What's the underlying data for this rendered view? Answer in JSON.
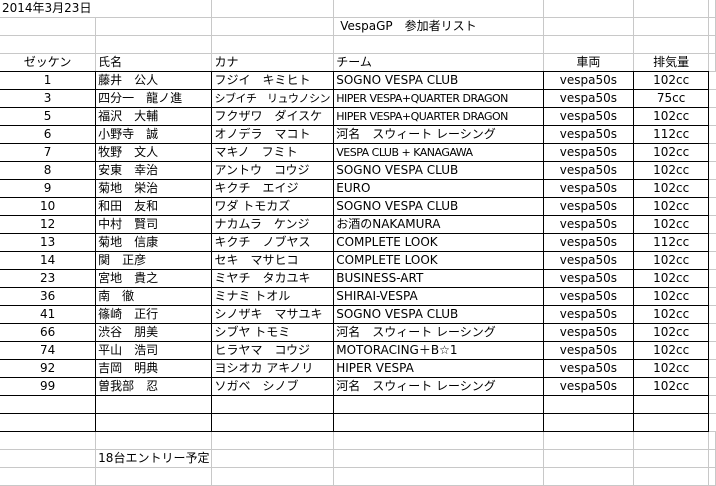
{
  "date": "2014年3月23日",
  "title": "VespaGP　参加者リスト",
  "headers": {
    "number": "ゼッケン",
    "name": "氏名",
    "kana": "カナ",
    "team": "チーム",
    "vehicle": "車両",
    "displacement": "排気量"
  },
  "entries": [
    {
      "number": "1",
      "name": "藤井　公人",
      "kana": "フジイ　キミヒト",
      "team": "SOGNO VESPA CLUB",
      "vehicle": "vespa50s",
      "displacement": "102cc"
    },
    {
      "number": "3",
      "name": "四分一　龍ノ進",
      "kana": "シブイチ　リュウノシン",
      "team": "HIPER VESPA+QUARTER DRAGON",
      "vehicle": "vespa50s",
      "displacement": "75cc"
    },
    {
      "number": "5",
      "name": "福沢　大輔",
      "kana": "フクザワ　ダイスケ",
      "team": "HIPER VESPA+QUARTER DRAGON",
      "vehicle": "vespa50s",
      "displacement": "102cc"
    },
    {
      "number": "6",
      "name": "小野寺　誠",
      "kana": "オノデラ　マコト",
      "team": "河名　スウィート レーシング",
      "vehicle": "vespa50s",
      "displacement": "112cc"
    },
    {
      "number": "7",
      "name": "牧野　文人",
      "kana": "マキノ　フミト",
      "team": "VESPA CLUB + KANAGAWA",
      "vehicle": "vespa50s",
      "displacement": "102cc"
    },
    {
      "number": "8",
      "name": "安東　幸治",
      "kana": "アントウ　コウジ",
      "team": "SOGNO VESPA CLUB",
      "vehicle": "vespa50s",
      "displacement": "102cc"
    },
    {
      "number": "9",
      "name": "菊地　栄治",
      "kana": "キクチ　エイジ",
      "team": "EURO",
      "vehicle": "vespa50s",
      "displacement": "102cc"
    },
    {
      "number": "10",
      "name": "和田　友和",
      "kana": "ワダ トモカズ",
      "team": "SOGNO VESPA CLUB",
      "vehicle": "vespa50s",
      "displacement": "102cc"
    },
    {
      "number": "12",
      "name": "中村　賢司",
      "kana": "ナカムラ　ケンジ",
      "team": "お酒のNAKAMURA",
      "vehicle": "vespa50s",
      "displacement": "102cc"
    },
    {
      "number": "13",
      "name": "菊地　信康",
      "kana": "キクチ　ノブヤス",
      "team": "COMPLETE LOOK",
      "vehicle": "vespa50s",
      "displacement": "112cc"
    },
    {
      "number": "14",
      "name": "関　正彦",
      "kana": "セキ　マサヒコ",
      "team": "COMPLETE LOOK",
      "vehicle": "vespa50s",
      "displacement": "102cc"
    },
    {
      "number": "23",
      "name": "宮地　貴之",
      "kana": "ミヤチ　タカユキ",
      "team": "BUSINESS-ART",
      "vehicle": "vespa50s",
      "displacement": "102cc"
    },
    {
      "number": "36",
      "name": "南　徹",
      "kana": "ミナミ トオル",
      "team": "SHIRAI-VESPA",
      "vehicle": "vespa50s",
      "displacement": "102cc"
    },
    {
      "number": "41",
      "name": "篠崎　正行",
      "kana": "シノザキ　マサユキ",
      "team": "SOGNO VESPA CLUB",
      "vehicle": "vespa50s",
      "displacement": "102cc"
    },
    {
      "number": "66",
      "name": "渋谷　朋美",
      "kana": "シブヤ トモミ",
      "team": "河名　スウィート レーシング",
      "vehicle": "vespa50s",
      "displacement": "102cc"
    },
    {
      "number": "74",
      "name": "平山　浩司",
      "kana": "ヒラヤマ　コウジ",
      "team": "MOTORACING＋B☆1",
      "vehicle": "vespa50s",
      "displacement": "102cc"
    },
    {
      "number": "92",
      "name": "吉岡　明典",
      "kana": "ヨシオカ アキノリ",
      "team": "HIPER VESPA",
      "vehicle": "vespa50s",
      "displacement": "102cc"
    },
    {
      "number": "99",
      "name": "曽我部　忍",
      "kana": "ソガベ　シノブ",
      "team": "河名　スウィート レーシング",
      "vehicle": "vespa50s",
      "displacement": "102cc"
    }
  ],
  "footer_note": "18台エントリー予定"
}
